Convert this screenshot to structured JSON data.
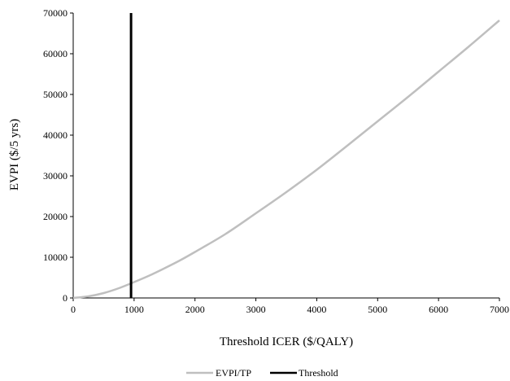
{
  "chart_data": {
    "type": "line",
    "title": "",
    "xlabel": "Threshold ICER ($/QALY)",
    "ylabel": "EVPI ($/5 yrs)",
    "xlim": [
      0,
      7000
    ],
    "ylim": [
      0,
      70000
    ],
    "x_ticks": [
      0,
      1000,
      2000,
      3000,
      4000,
      5000,
      6000,
      7000
    ],
    "y_ticks": [
      0,
      10000,
      20000,
      30000,
      40000,
      50000,
      60000,
      70000
    ],
    "grid": false,
    "legend_position": "bottom",
    "series": [
      {
        "name": "EVPI/TP",
        "color": "#bfbfbf",
        "x": [
          0,
          250,
          500,
          750,
          1000,
          1250,
          1500,
          1750,
          2000,
          2500,
          3000,
          3500,
          4000,
          4500,
          5000,
          5500,
          6000,
          6500,
          7000
        ],
        "y": [
          0,
          400,
          1200,
          2400,
          3900,
          5500,
          7300,
          9200,
          11300,
          15700,
          20800,
          26000,
          31500,
          37400,
          43400,
          49400,
          55600,
          61800,
          68200
        ]
      }
    ],
    "threshold": {
      "name": "Threshold",
      "color": "#000000",
      "x": 950
    }
  }
}
